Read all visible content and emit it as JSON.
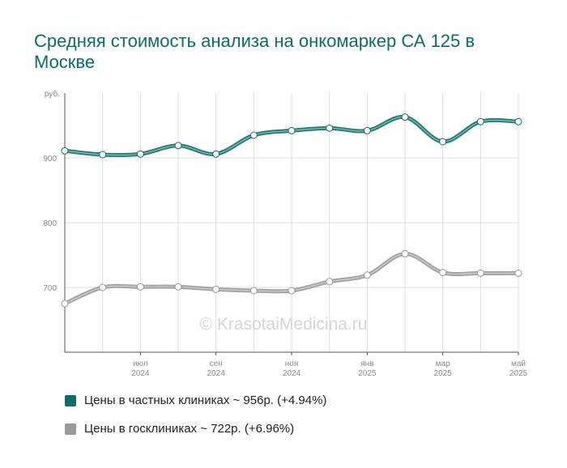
{
  "title": "Средняя стоимость анализа на онкомаркер СА 125 в Москве",
  "watermark": "© KrasotaiMedicina.ru",
  "legend": [
    {
      "label": "Цены в частных клиниках ~ 956р. (+4.94%)",
      "color": "#0b6e66"
    },
    {
      "label": "Цены в госклиниках ~ 722р. (+6.96%)",
      "color": "#999999"
    }
  ],
  "chart_data": {
    "type": "line",
    "title": "Средняя стоимость анализа на онкомаркер СА 125 в Москве",
    "ylabel": "руб.",
    "ylim": [
      600,
      1000
    ],
    "yticks": [
      700,
      800,
      900
    ],
    "x": [
      "2024-05",
      "2024-06",
      "2024-07",
      "2024-08",
      "2024-09",
      "2024-10",
      "2024-11",
      "2024-12",
      "2025-01",
      "2025-02",
      "2025-03",
      "2025-04",
      "2025-05"
    ],
    "xticks": [
      {
        "x": "2024-07",
        "month": "июл",
        "year": "2024"
      },
      {
        "x": "2024-09",
        "month": "сен",
        "year": "2024"
      },
      {
        "x": "2024-11",
        "month": "ноя",
        "year": "2024"
      },
      {
        "x": "2025-01",
        "month": "янв",
        "year": "2025"
      },
      {
        "x": "2025-03",
        "month": "мар",
        "year": "2025"
      },
      {
        "x": "2025-05",
        "month": "май",
        "year": "2025"
      }
    ],
    "series": [
      {
        "name": "Цены в частных клиниках",
        "color": "#0b6e66",
        "values": [
          911,
          905,
          906,
          919,
          906,
          935,
          942,
          946,
          942,
          963,
          925,
          956,
          956
        ]
      },
      {
        "name": "Цены в госклиниках",
        "color": "#999999",
        "values": [
          675,
          700,
          701,
          701,
          697,
          695,
          695,
          709,
          719,
          752,
          723,
          722,
          722
        ]
      }
    ],
    "grid": true,
    "legend_position": "bottom"
  }
}
